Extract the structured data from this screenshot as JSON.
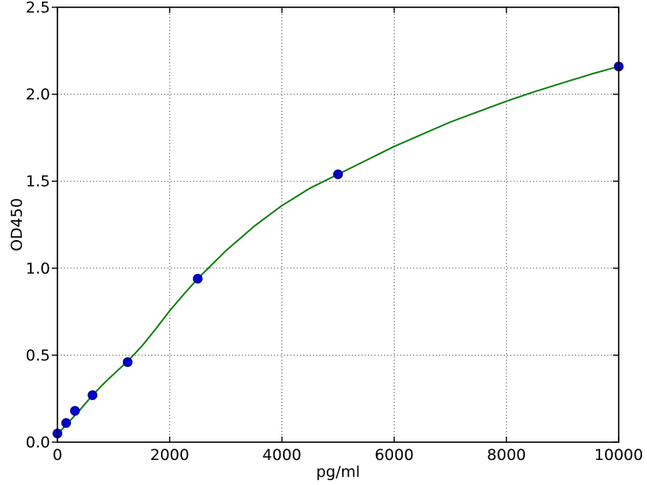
{
  "figure": {
    "kind": "elisa-standard-curve-plot",
    "background": "#ffffff"
  },
  "chart_data": {
    "type": "scatter",
    "title": "",
    "xlabel": "pg/ml",
    "ylabel": "OD450",
    "xlim": [
      0,
      10000
    ],
    "ylim": [
      0.0,
      2.5
    ],
    "x_ticks": [
      0,
      2000,
      4000,
      6000,
      8000,
      10000
    ],
    "x_tick_labels": [
      "0",
      "2000",
      "4000",
      "6000",
      "8000",
      "10000"
    ],
    "y_ticks": [
      0.0,
      0.5,
      1.0,
      1.5,
      2.0,
      2.5
    ],
    "y_tick_labels": [
      "0.0",
      "0.5",
      "1.0",
      "1.5",
      "2.0",
      "2.5"
    ],
    "grid": true,
    "grid_style": "dotted",
    "legend": "none",
    "series": [
      {
        "name": "standard-points",
        "type": "scatter",
        "x": [
          0,
          156.25,
          312.5,
          625,
          1250,
          2500,
          5000,
          10000
        ],
        "y": [
          0.05,
          0.11,
          0.18,
          0.27,
          0.46,
          0.94,
          1.54,
          2.16
        ]
      },
      {
        "name": "fitted-curve",
        "type": "line",
        "x": [
          0,
          200,
          400,
          625,
          850,
          1050,
          1250,
          1500,
          1750,
          2000,
          2250,
          2500,
          2750,
          3000,
          3250,
          3500,
          3750,
          4000,
          4250,
          4500,
          4750,
          5000,
          5250,
          5500,
          5750,
          6000,
          6500,
          7000,
          7500,
          8000,
          8500,
          9000,
          9500,
          10000
        ],
        "y": [
          0.045,
          0.115,
          0.185,
          0.27,
          0.345,
          0.405,
          0.465,
          0.55,
          0.65,
          0.755,
          0.85,
          0.94,
          1.02,
          1.1,
          1.17,
          1.24,
          1.3,
          1.36,
          1.41,
          1.46,
          1.5,
          1.54,
          1.58,
          1.62,
          1.66,
          1.7,
          1.77,
          1.84,
          1.9,
          1.96,
          2.015,
          2.065,
          2.115,
          2.16
        ]
      }
    ],
    "colors": {
      "point_fill": "#0000cc",
      "point_edge": "#000080",
      "curve": "#0f800f",
      "grid": "#555555",
      "axis": "#000000",
      "tick": "#000000",
      "text": "#000000",
      "background": "#ffffff"
    },
    "marker_radius": 5.5,
    "fonts": {
      "tick_size": 19,
      "label_size": 19
    }
  }
}
